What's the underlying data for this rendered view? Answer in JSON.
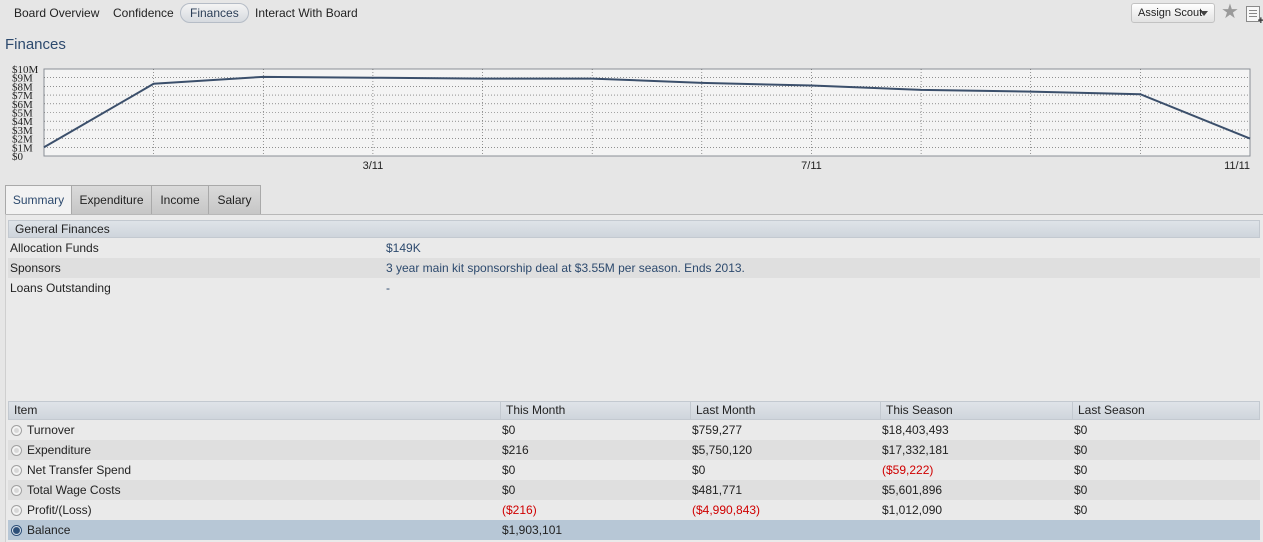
{
  "nav": {
    "tabs": [
      {
        "label": "Board Overview"
      },
      {
        "label": "Confidence"
      },
      {
        "label": "Finances"
      },
      {
        "label": "Interact With Board"
      }
    ],
    "active_tab": "Finances",
    "assign_scout": "Assign Scout"
  },
  "page": {
    "title": "Finances"
  },
  "chart_data": {
    "type": "line",
    "ylim": [
      0,
      10000000
    ],
    "y_ticks": [
      "$10M",
      "$9M",
      "$8M",
      "$7M",
      "$6M",
      "$5M",
      "$4M",
      "$3M",
      "$2M",
      "$1M",
      "$0"
    ],
    "x_ticks": [
      "3/11",
      "7/11",
      "11/11"
    ],
    "grid": true,
    "series": [
      {
        "values": [
          1000000,
          8300000,
          9100000,
          9000000,
          8900000,
          8900000,
          8400000,
          8100000,
          7600000,
          7400000,
          7100000,
          2000000
        ]
      }
    ],
    "color": "#3b4f6b"
  },
  "subtabs": {
    "items": [
      {
        "label": "Summary"
      },
      {
        "label": "Expenditure"
      },
      {
        "label": "Income"
      },
      {
        "label": "Salary"
      }
    ],
    "active": "Summary"
  },
  "general": {
    "header": "General Finances",
    "rows": [
      {
        "label": "Allocation Funds",
        "value": "$149K"
      },
      {
        "label": "Sponsors",
        "value": "3 year main kit sponsorship deal at $3.55M per season. Ends 2013."
      },
      {
        "label": "Loans Outstanding",
        "value": "-"
      }
    ]
  },
  "table": {
    "headers": [
      "Item",
      "This Month",
      "Last Month",
      "This Season",
      "Last Season"
    ],
    "rows": [
      {
        "item": "Turnover",
        "this_month": "$0",
        "last_month": "$759,277",
        "this_season": "$18,403,493",
        "last_season": "$0"
      },
      {
        "item": "Expenditure",
        "this_month": "$216",
        "last_month": "$5,750,120",
        "this_season": "$17,332,181",
        "last_season": "$0"
      },
      {
        "item": "Net Transfer Spend",
        "this_month": "$0",
        "last_month": "$0",
        "this_season": "($59,222)",
        "last_season": "$0"
      },
      {
        "item": "Total Wage Costs",
        "this_month": "$0",
        "last_month": "$481,771",
        "this_season": "$5,601,896",
        "last_season": "$0"
      },
      {
        "item": "Profit/(Loss)",
        "this_month": "($216)",
        "last_month": "($4,990,843)",
        "this_season": "$1,012,090",
        "last_season": "$0"
      },
      {
        "item": "Balance",
        "this_month": "$1,903,101",
        "last_month": "",
        "this_season": "",
        "last_season": ""
      }
    ],
    "selected_row": "Balance"
  }
}
